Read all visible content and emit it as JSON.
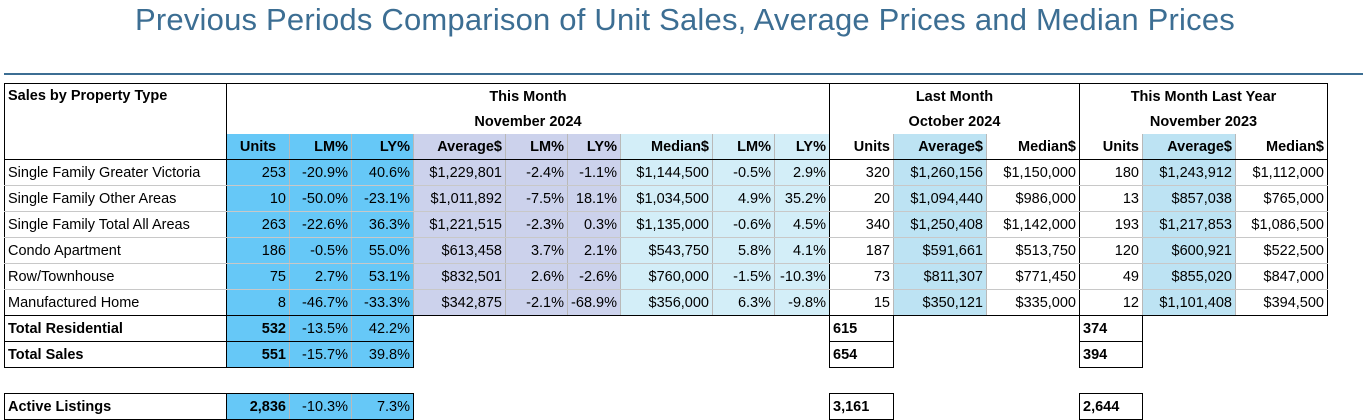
{
  "title": "Previous Periods Comparison of Unit Sales, Average Prices and Median Prices",
  "headers": {
    "row_label": "Sales by Property Type",
    "this_month": "This Month",
    "this_month_period": "November 2024",
    "last_month": "Last Month",
    "last_month_period": "October 2024",
    "last_year": "This Month Last Year",
    "last_year_period": "November 2023",
    "units": "Units",
    "lm_pct": "LM%",
    "ly_pct": "LY%",
    "average": "Average$",
    "median": "Median$"
  },
  "rows": [
    {
      "label": "Single Family Greater Victoria",
      "tm": {
        "units": "253",
        "lm": "-20.9%",
        "ly": "40.6%",
        "avg": "$1,229,801",
        "avg_lm": "-2.4%",
        "avg_ly": "-1.1%",
        "med": "$1,144,500",
        "med_lm": "-0.5%",
        "med_ly": "2.9%"
      },
      "lm": {
        "units": "320",
        "avg": "$1,260,156",
        "med": "$1,150,000"
      },
      "ly": {
        "units": "180",
        "avg": "$1,243,912",
        "med": "$1,112,000"
      }
    },
    {
      "label": "Single Family Other Areas",
      "tm": {
        "units": "10",
        "lm": "-50.0%",
        "ly": "-23.1%",
        "avg": "$1,011,892",
        "avg_lm": "-7.5%",
        "avg_ly": "18.1%",
        "med": "$1,034,500",
        "med_lm": "4.9%",
        "med_ly": "35.2%"
      },
      "lm": {
        "units": "20",
        "avg": "$1,094,440",
        "med": "$986,000"
      },
      "ly": {
        "units": "13",
        "avg": "$857,038",
        "med": "$765,000"
      }
    },
    {
      "label": "Single Family Total All Areas",
      "tm": {
        "units": "263",
        "lm": "-22.6%",
        "ly": "36.3%",
        "avg": "$1,221,515",
        "avg_lm": "-2.3%",
        "avg_ly": "0.3%",
        "med": "$1,135,000",
        "med_lm": "-0.6%",
        "med_ly": "4.5%"
      },
      "lm": {
        "units": "340",
        "avg": "$1,250,408",
        "med": "$1,142,000"
      },
      "ly": {
        "units": "193",
        "avg": "$1,217,853",
        "med": "$1,086,500"
      }
    },
    {
      "label": "Condo Apartment",
      "tm": {
        "units": "186",
        "lm": "-0.5%",
        "ly": "55.0%",
        "avg": "$613,458",
        "avg_lm": "3.7%",
        "avg_ly": "2.1%",
        "med": "$543,750",
        "med_lm": "5.8%",
        "med_ly": "4.1%"
      },
      "lm": {
        "units": "187",
        "avg": "$591,661",
        "med": "$513,750"
      },
      "ly": {
        "units": "120",
        "avg": "$600,921",
        "med": "$522,500"
      }
    },
    {
      "label": "Row/Townhouse",
      "tm": {
        "units": "75",
        "lm": "2.7%",
        "ly": "53.1%",
        "avg": "$832,501",
        "avg_lm": "2.6%",
        "avg_ly": "-2.6%",
        "med": "$760,000",
        "med_lm": "-1.5%",
        "med_ly": "-10.3%"
      },
      "lm": {
        "units": "73",
        "avg": "$811,307",
        "med": "$771,450"
      },
      "ly": {
        "units": "49",
        "avg": "$855,020",
        "med": "$847,000"
      }
    },
    {
      "label": "Manufactured Home",
      "tm": {
        "units": "8",
        "lm": "-46.7%",
        "ly": "-33.3%",
        "avg": "$342,875",
        "avg_lm": "-2.1%",
        "avg_ly": "-68.9%",
        "med": "$356,000",
        "med_lm": "6.3%",
        "med_ly": "-9.8%"
      },
      "lm": {
        "units": "15",
        "avg": "$350,121",
        "med": "$335,000"
      },
      "ly": {
        "units": "12",
        "avg": "$1,101,408",
        "med": "$394,500"
      }
    }
  ],
  "totals": [
    {
      "label": "Total Residential",
      "tm_units": "532",
      "tm_lm": "-13.5%",
      "tm_ly": "42.2%",
      "lm_units": "615",
      "ly_units": "374"
    },
    {
      "label": "Total Sales",
      "tm_units": "551",
      "tm_lm": "-15.7%",
      "tm_ly": "39.8%",
      "lm_units": "654",
      "ly_units": "394"
    }
  ],
  "active_listings": {
    "label": "Active Listings",
    "tm_units": "2,836",
    "tm_lm": "-10.3%",
    "tm_ly": "7.3%",
    "lm_units": "3,161",
    "ly_units": "2,644"
  },
  "colors": {
    "title": "#3c6e93",
    "units_fill": "#66c8f7",
    "average_fill": "#ccd2ec",
    "median_fill": "#d3eef8",
    "compare_avg_fill": "#bde3f3"
  }
}
